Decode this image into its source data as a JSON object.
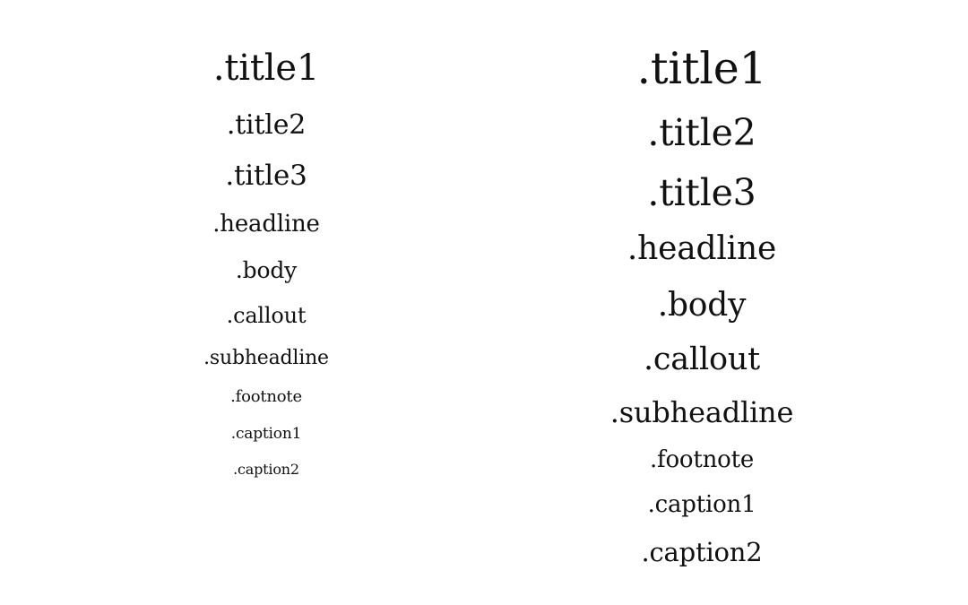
{
  "columns": {
    "left": {
      "title1": ".title1",
      "title2": ".title2",
      "title3": ".title3",
      "headline": ".headline",
      "body": ".body",
      "callout": ".callout",
      "subheadline": ".subheadline",
      "footnote": ".footnote",
      "caption1": ".caption1",
      "caption2": ".caption2"
    },
    "right": {
      "title1": ".title1",
      "title2": ".title2",
      "title3": ".title3",
      "headline": ".headline",
      "body": ".body",
      "callout": ".callout",
      "subheadline": ".subheadline",
      "footnote": ".footnote",
      "caption1": ".caption1",
      "caption2": ".caption2"
    }
  },
  "colors": {
    "background": "#ffffff",
    "text": "#111111"
  }
}
